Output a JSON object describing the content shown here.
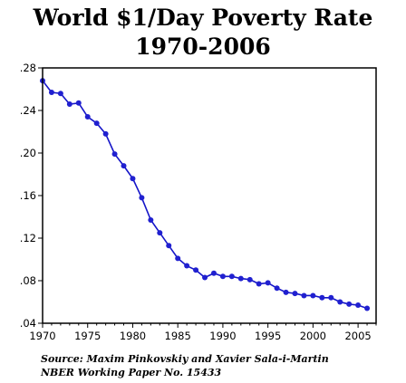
{
  "chart_data": {
    "type": "line",
    "title": "World $1/Day Poverty Rate",
    "subtitle": "1970-2006",
    "xlabel": "",
    "ylabel": "",
    "xlim": [
      1970,
      2007
    ],
    "ylim": [
      0.04,
      0.28
    ],
    "xticks": [
      1970,
      1975,
      1980,
      1985,
      1990,
      1995,
      2000,
      2005
    ],
    "xtick_labels": [
      "1970",
      "1975",
      "1980",
      "1985",
      "1990",
      "1995",
      "2000",
      "2005"
    ],
    "yticks": [
      0.04,
      0.08,
      0.12,
      0.16,
      0.2,
      0.24,
      0.28
    ],
    "ytick_labels": [
      ".04",
      ".08",
      ".12",
      ".16",
      ".20",
      ".24",
      ".28"
    ],
    "grid": false,
    "line_color": "#1515c8",
    "marker_color": "#2020d0",
    "x": [
      1970,
      1971,
      1972,
      1973,
      1974,
      1975,
      1976,
      1977,
      1978,
      1979,
      1980,
      1981,
      1982,
      1983,
      1984,
      1985,
      1986,
      1987,
      1988,
      1989,
      1990,
      1991,
      1992,
      1993,
      1994,
      1995,
      1996,
      1997,
      1998,
      1999,
      2000,
      2001,
      2002,
      2003,
      2004,
      2005,
      2006
    ],
    "values": [
      0.268,
      0.257,
      0.256,
      0.246,
      0.247,
      0.234,
      0.228,
      0.218,
      0.199,
      0.188,
      0.176,
      0.158,
      0.137,
      0.125,
      0.113,
      0.101,
      0.094,
      0.09,
      0.083,
      0.087,
      0.084,
      0.084,
      0.082,
      0.081,
      0.077,
      0.078,
      0.073,
      0.069,
      0.068,
      0.066,
      0.066,
      0.064,
      0.064,
      0.06,
      0.058,
      0.057,
      0.054
    ]
  },
  "source": {
    "line1": "Source: Maxim Pinkovskiy and Xavier Sala-i-Martin",
    "line2": "NBER Working Paper No. 15433"
  }
}
